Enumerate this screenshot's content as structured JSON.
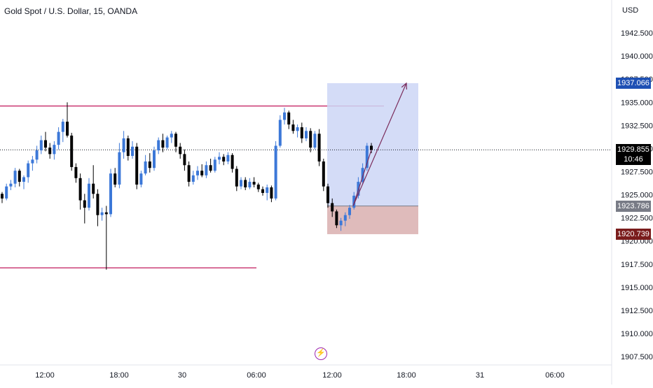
{
  "header": {
    "title": "Gold Spot / U.S. Dollar, 15, OANDA",
    "currency": "USD"
  },
  "price_tags": {
    "target": "1937.066",
    "current": "1929.855",
    "countdown": "10:46",
    "entry": "1923.786",
    "stop": "1920.739"
  },
  "colors": {
    "bull": "#3c78d8",
    "bear": "#000000",
    "level_line": "#c2185b",
    "target_zone": "#ccd6f6",
    "stop_zone": "#dcb4b4",
    "arrow": "#7b2d5c",
    "target_tag": "#1e50b4",
    "current_tag": "#000000",
    "entry_tag": "#787b86",
    "stop_tag": "#7a1c1c"
  },
  "icons": {
    "events": "lightning-icon"
  },
  "chart_data": {
    "type": "candlestick",
    "instrument": "Gold Spot / U.S. Dollar",
    "interval": "15",
    "source": "OANDA",
    "currency": "USD",
    "y_ticks": [
      "1942.500",
      "1940.000",
      "1937.500",
      "1935.000",
      "1932.500",
      "1930.000",
      "1927.500",
      "1925.000",
      "1922.500",
      "1920.000",
      "1917.500",
      "1915.000",
      "1912.500",
      "1910.000",
      "1907.500"
    ],
    "y_range": [
      1906.6,
      1944.7
    ],
    "x_ticks": [
      "12:00",
      "18:00",
      "30",
      "06:00",
      "12:00",
      "18:00",
      "31",
      "06:00"
    ],
    "current_price": 1929.855,
    "horizontal_levels": [
      1934.6,
      1917.1
    ],
    "position": {
      "side": "long",
      "entry": 1923.786,
      "target": 1937.066,
      "stop": 1920.739
    },
    "projection_path": [
      1929.855,
      1923.786,
      1937.066
    ],
    "ohlc": [
      [
        1925.1,
        1925.3,
        1924.1,
        1924.6
      ],
      [
        1924.6,
        1926.2,
        1924.4,
        1925.9
      ],
      [
        1925.9,
        1926.6,
        1925.5,
        1926.2
      ],
      [
        1926.2,
        1927.9,
        1925.8,
        1927.6
      ],
      [
        1927.6,
        1927.8,
        1925.9,
        1926.4
      ],
      [
        1926.4,
        1927.1,
        1925.6,
        1926.9
      ],
      [
        1926.9,
        1928.7,
        1926.3,
        1928.4
      ],
      [
        1928.4,
        1929.2,
        1927.6,
        1928.8
      ],
      [
        1928.8,
        1930.3,
        1928.4,
        1929.8
      ],
      [
        1929.8,
        1931.4,
        1929.4,
        1930.9
      ],
      [
        1930.9,
        1931.8,
        1929.7,
        1930.1
      ],
      [
        1930.1,
        1930.6,
        1928.9,
        1929.4
      ],
      [
        1929.4,
        1930.8,
        1928.8,
        1930.4
      ],
      [
        1930.4,
        1932.3,
        1929.9,
        1931.8
      ],
      [
        1931.8,
        1933.2,
        1930.7,
        1932.9
      ],
      [
        1932.9,
        1935.0,
        1931.2,
        1931.4
      ],
      [
        1931.4,
        1931.7,
        1927.6,
        1928.0
      ],
      [
        1928.0,
        1928.4,
        1926.3,
        1926.8
      ],
      [
        1926.8,
        1927.3,
        1923.4,
        1924.4
      ],
      [
        1924.4,
        1925.1,
        1921.9,
        1923.6
      ],
      [
        1923.6,
        1926.8,
        1923.3,
        1926.2
      ],
      [
        1926.2,
        1928.2,
        1924.6,
        1925.1
      ],
      [
        1925.1,
        1925.6,
        1921.6,
        1922.8
      ],
      [
        1922.8,
        1923.6,
        1922.2,
        1923.1
      ],
      [
        1923.1,
        1923.8,
        1916.9,
        1922.9
      ],
      [
        1922.9,
        1927.8,
        1922.6,
        1927.3
      ],
      [
        1927.3,
        1927.9,
        1925.8,
        1926.1
      ],
      [
        1926.1,
        1930.6,
        1925.7,
        1929.6
      ],
      [
        1929.6,
        1931.9,
        1928.9,
        1931.1
      ],
      [
        1931.1,
        1931.4,
        1928.7,
        1929.2
      ],
      [
        1929.2,
        1930.8,
        1928.9,
        1930.2
      ],
      [
        1930.2,
        1930.6,
        1925.6,
        1926.1
      ],
      [
        1926.1,
        1927.6,
        1925.8,
        1927.3
      ],
      [
        1927.3,
        1929.3,
        1927.1,
        1928.6
      ],
      [
        1928.6,
        1929.5,
        1927.4,
        1927.9
      ],
      [
        1927.9,
        1930.2,
        1927.6,
        1929.8
      ],
      [
        1929.8,
        1931.2,
        1929.4,
        1930.9
      ],
      [
        1930.9,
        1931.6,
        1929.6,
        1930.1
      ],
      [
        1930.1,
        1931.4,
        1929.9,
        1931.2
      ],
      [
        1931.2,
        1931.9,
        1930.6,
        1931.6
      ],
      [
        1931.6,
        1931.8,
        1929.6,
        1930.2
      ],
      [
        1930.2,
        1930.6,
        1928.9,
        1929.4
      ],
      [
        1929.4,
        1929.9,
        1927.6,
        1928.2
      ],
      [
        1928.2,
        1928.6,
        1925.9,
        1926.4
      ],
      [
        1926.4,
        1927.6,
        1926.1,
        1927.1
      ],
      [
        1927.1,
        1928.1,
        1926.6,
        1927.6
      ],
      [
        1927.6,
        1928.3,
        1926.9,
        1927.1
      ],
      [
        1927.1,
        1928.6,
        1926.8,
        1928.2
      ],
      [
        1928.2,
        1928.9,
        1927.4,
        1927.6
      ],
      [
        1927.6,
        1929.1,
        1927.4,
        1928.8
      ],
      [
        1928.8,
        1929.6,
        1928.3,
        1929.1
      ],
      [
        1929.1,
        1929.4,
        1928.2,
        1928.6
      ],
      [
        1928.6,
        1929.6,
        1928.3,
        1929.3
      ],
      [
        1929.3,
        1929.5,
        1927.4,
        1927.8
      ],
      [
        1927.8,
        1928.1,
        1925.4,
        1925.9
      ],
      [
        1925.9,
        1926.9,
        1925.6,
        1926.6
      ],
      [
        1926.6,
        1926.9,
        1925.5,
        1925.8
      ],
      [
        1925.8,
        1926.8,
        1925.6,
        1926.4
      ],
      [
        1926.4,
        1926.9,
        1925.8,
        1926.1
      ],
      [
        1926.1,
        1926.3,
        1925.3,
        1925.6
      ],
      [
        1925.6,
        1925.9,
        1924.9,
        1925.2
      ],
      [
        1925.2,
        1926.1,
        1924.4,
        1925.8
      ],
      [
        1925.8,
        1926.0,
        1924.2,
        1924.6
      ],
      [
        1924.6,
        1930.8,
        1924.4,
        1930.3
      ],
      [
        1930.3,
        1933.6,
        1930.1,
        1933.1
      ],
      [
        1933.1,
        1934.4,
        1932.6,
        1933.9
      ],
      [
        1933.9,
        1934.1,
        1932.1,
        1932.6
      ],
      [
        1932.6,
        1933.1,
        1931.6,
        1931.9
      ],
      [
        1931.9,
        1932.6,
        1931.2,
        1932.3
      ],
      [
        1932.3,
        1932.8,
        1930.6,
        1931.1
      ],
      [
        1931.1,
        1932.3,
        1930.8,
        1931.9
      ],
      [
        1931.9,
        1932.2,
        1929.6,
        1930.1
      ],
      [
        1930.1,
        1931.9,
        1929.9,
        1931.6
      ],
      [
        1931.6,
        1932.1,
        1928.1,
        1928.6
      ],
      [
        1928.6,
        1928.9,
        1925.4,
        1925.9
      ],
      [
        1925.9,
        1926.2,
        1923.6,
        1924.1
      ],
      [
        1924.1,
        1924.6,
        1922.6,
        1923.2
      ],
      [
        1923.2,
        1923.4,
        1921.4,
        1921.7
      ],
      [
        1921.7,
        1922.5,
        1921.1,
        1922.2
      ],
      [
        1922.2,
        1923.1,
        1921.6,
        1922.8
      ],
      [
        1922.8,
        1923.9,
        1922.4,
        1923.6
      ],
      [
        1923.6,
        1925.3,
        1923.4,
        1924.9
      ],
      [
        1924.9,
        1926.9,
        1924.6,
        1926.4
      ],
      [
        1926.4,
        1928.4,
        1926.1,
        1927.9
      ],
      [
        1927.9,
        1930.6,
        1927.6,
        1930.3
      ],
      [
        1930.3,
        1930.6,
        1929.5,
        1929.855
      ]
    ]
  }
}
